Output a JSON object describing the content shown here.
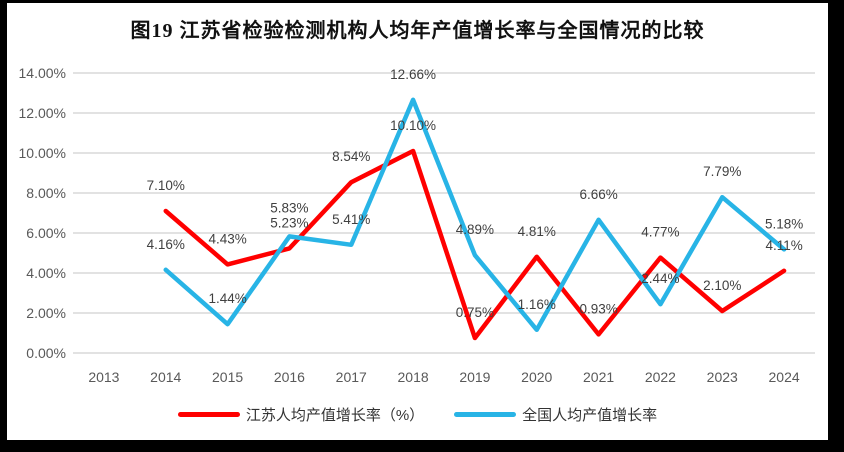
{
  "figure": {
    "title": "图19 江苏省检验检测机构人均年产值增长率与全国情况的比较"
  },
  "chart_data": {
    "type": "line",
    "title": "图19 江苏省检验检测机构人均年产值增长率与全国情况的比较",
    "categories": [
      "2013",
      "2014",
      "2015",
      "2016",
      "2017",
      "2018",
      "2019",
      "2020",
      "2021",
      "2022",
      "2023",
      "2024"
    ],
    "series": [
      {
        "name": "江苏人均产值增长率（%）",
        "color": "#FF0000",
        "values": [
          null,
          7.1,
          4.43,
          5.23,
          8.54,
          10.1,
          0.75,
          4.81,
          0.93,
          4.77,
          2.1,
          4.11
        ]
      },
      {
        "name": "全国人均产值增长率",
        "color": "#28B4E6",
        "values": [
          null,
          4.16,
          1.44,
          5.83,
          5.41,
          12.66,
          4.89,
          1.16,
          6.66,
          2.44,
          7.79,
          5.18
        ]
      }
    ],
    "y_axis": {
      "min": 0,
      "max": 14,
      "step": 2,
      "tick_labels": [
        "0.00%",
        "2.00%",
        "4.00%",
        "6.00%",
        "8.00%",
        "10.00%",
        "12.00%",
        "14.00%"
      ]
    },
    "x_axis_label": "",
    "grid": true,
    "data_labels": true,
    "data_label_format": "0.00%",
    "legend_position": "bottom"
  },
  "colors": {
    "grid": "#D9D9D9",
    "axis_text": "#595959",
    "data_label_text": "#404040",
    "frame": "#000000",
    "background": "#FFFFFF"
  }
}
